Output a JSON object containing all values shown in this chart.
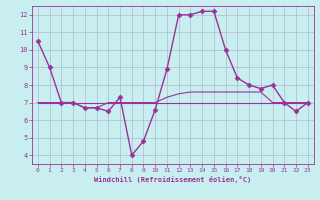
{
  "xlabel": "Windchill (Refroidissement éolien,°C)",
  "xlim": [
    -0.5,
    23.5
  ],
  "ylim": [
    3.5,
    12.5
  ],
  "xticks": [
    0,
    1,
    2,
    3,
    4,
    5,
    6,
    7,
    8,
    9,
    10,
    11,
    12,
    13,
    14,
    15,
    16,
    17,
    18,
    19,
    20,
    21,
    22,
    23
  ],
  "yticks": [
    4,
    5,
    6,
    7,
    8,
    9,
    10,
    11,
    12
  ],
  "background_color": "#c8eef0",
  "line_color": "#993399",
  "grid_color": "#b0b8d0",
  "lines": [
    {
      "x": [
        0,
        1,
        2,
        3,
        4,
        5,
        6,
        7,
        8,
        9,
        10,
        11,
        12,
        13,
        14,
        15,
        16,
        17,
        18,
        19,
        20,
        21,
        22,
        23
      ],
      "y": [
        10.5,
        9.0,
        7.0,
        7.0,
        6.7,
        6.7,
        6.5,
        7.3,
        4.0,
        4.8,
        6.6,
        8.9,
        12.0,
        12.0,
        12.2,
        12.2,
        10.0,
        8.4,
        8.0,
        7.8,
        8.0,
        7.0,
        6.5,
        7.0
      ],
      "marker": "D",
      "markersize": 2.5,
      "linewidth": 1.0
    },
    {
      "x": [
        0,
        1,
        2,
        3,
        4,
        5,
        6,
        7,
        8,
        9,
        10,
        11,
        12,
        13,
        14,
        15,
        16,
        17,
        18,
        19,
        20,
        21,
        22,
        23
      ],
      "y": [
        7.0,
        7.0,
        7.0,
        7.0,
        6.7,
        6.7,
        7.0,
        7.0,
        7.0,
        7.0,
        7.0,
        7.3,
        7.5,
        7.6,
        7.6,
        7.6,
        7.6,
        7.6,
        7.6,
        7.6,
        7.0,
        7.0,
        7.0,
        7.0
      ],
      "marker": null,
      "markersize": 0,
      "linewidth": 0.8
    },
    {
      "x": [
        0,
        23
      ],
      "y": [
        7.0,
        7.0
      ],
      "marker": null,
      "markersize": 0,
      "linewidth": 0.8
    }
  ]
}
